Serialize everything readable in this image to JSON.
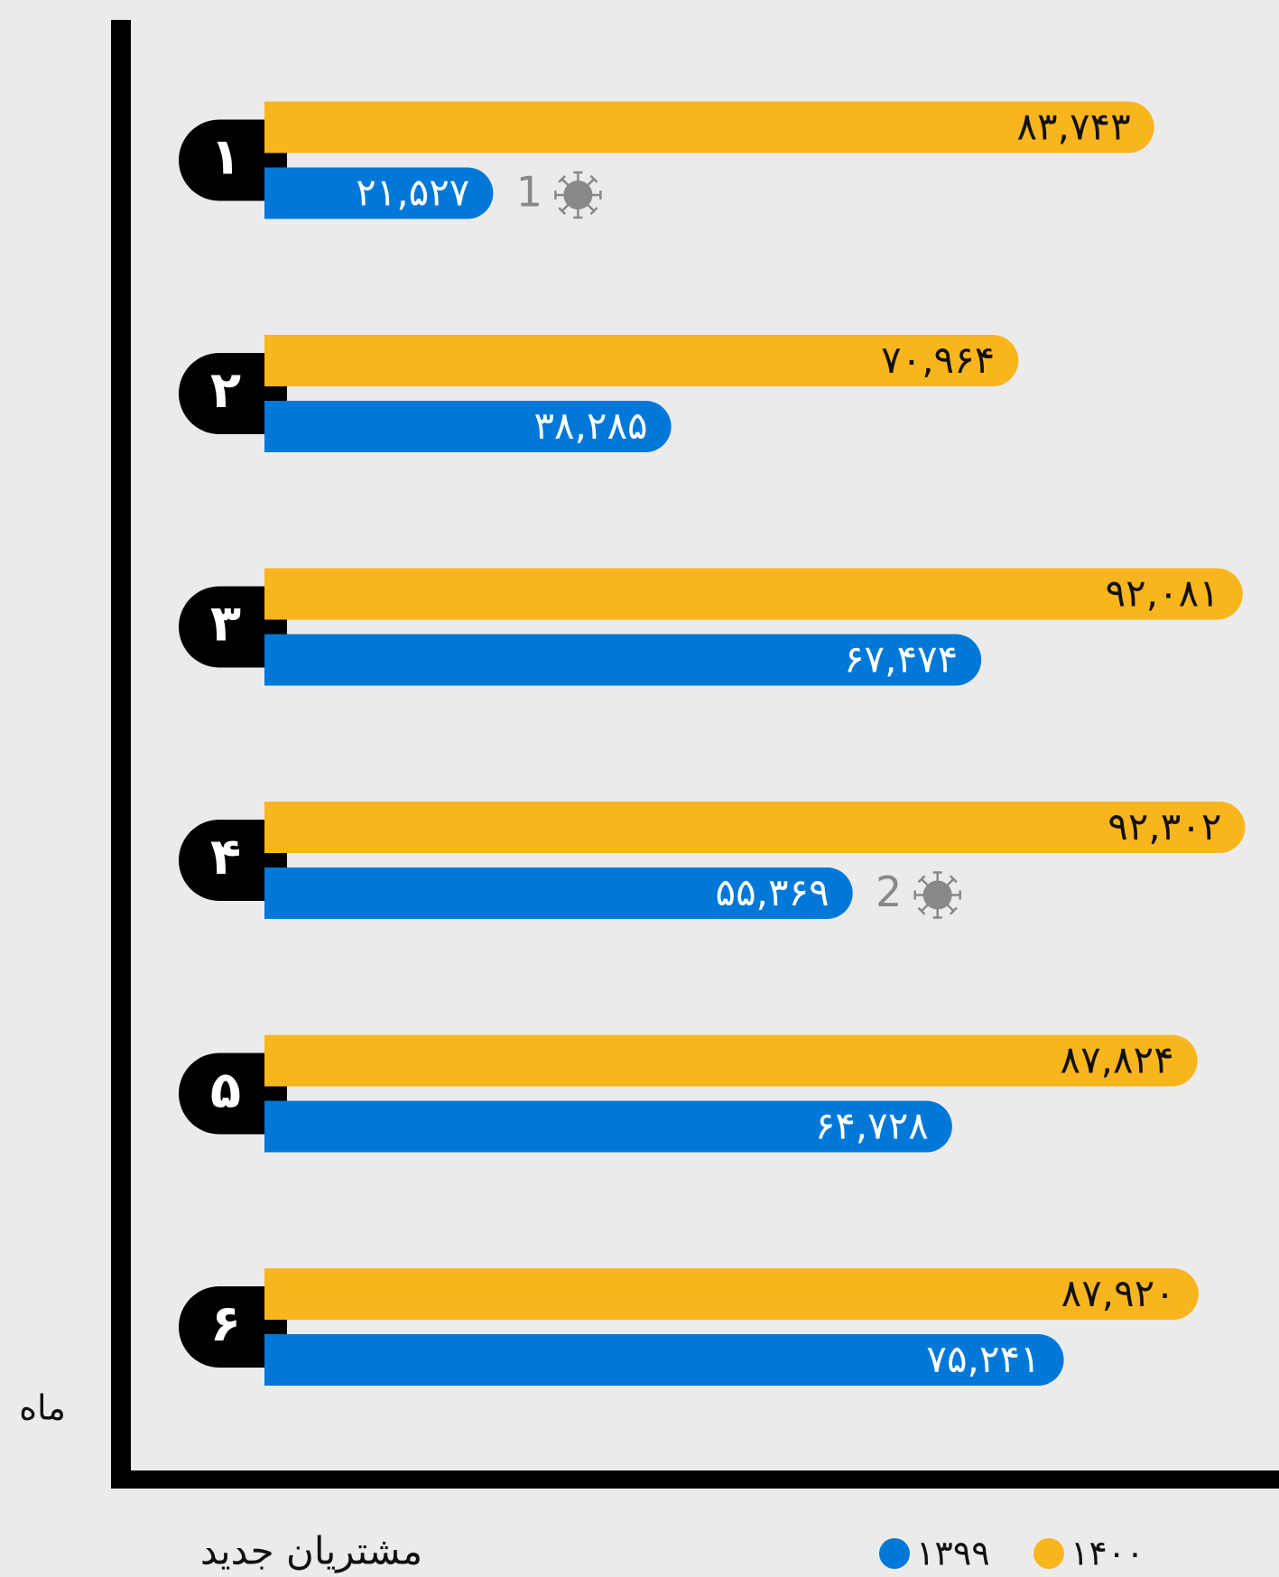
{
  "chart_data": {
    "type": "bar",
    "orientation": "horizontal",
    "x_label": "مشتریان جدید",
    "y_label": "ماه",
    "categories": [
      "۱",
      "۲",
      "۳",
      "۴",
      "۵",
      "۶"
    ],
    "series": [
      {
        "name": "۱۴۰۰",
        "color": "#f9b51e",
        "values": [
          83743,
          70964,
          92081,
          92302,
          87824,
          87920
        ],
        "value_labels": [
          "۸۳,۷۴۳",
          "۷۰,۹۶۴",
          "۹۲,۰۸۱",
          "۹۲,۳۰۲",
          "۸۷,۸۲۴",
          "۸۷,۹۲۰"
        ]
      },
      {
        "name": "۱۳۹۹",
        "color": "#0078d7",
        "values": [
          21527,
          38285,
          67474,
          55369,
          64728,
          75241
        ],
        "value_labels": [
          "۲۱,۵۲۷",
          "۳۸,۲۸۵",
          "۶۷,۴۷۴",
          "۵۵,۳۶۹",
          "۶۴,۷۲۸",
          "۷۵,۲۴۱"
        ],
        "annotations": [
          "1",
          null,
          null,
          "2",
          null,
          null
        ]
      }
    ]
  }
}
